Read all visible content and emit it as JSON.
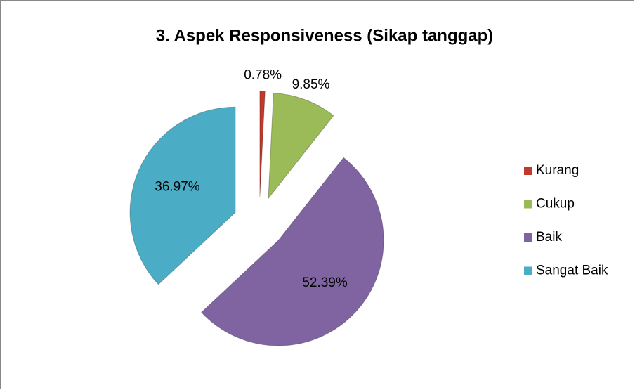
{
  "chart_data": {
    "type": "pie",
    "title": "3. Aspek Responsiveness (Sikap tanggap)",
    "categories": [
      "Kurang",
      "Cukup",
      "Baik",
      "Sangat Baik"
    ],
    "values": [
      0.78,
      9.85,
      52.39,
      36.97
    ],
    "value_labels": [
      "0.78%",
      "9.85%",
      "52.39%",
      "36.97%"
    ],
    "colors": [
      "#c0392b",
      "#9bbb59",
      "#8064a2",
      "#4bacc6"
    ],
    "legend": "right"
  }
}
